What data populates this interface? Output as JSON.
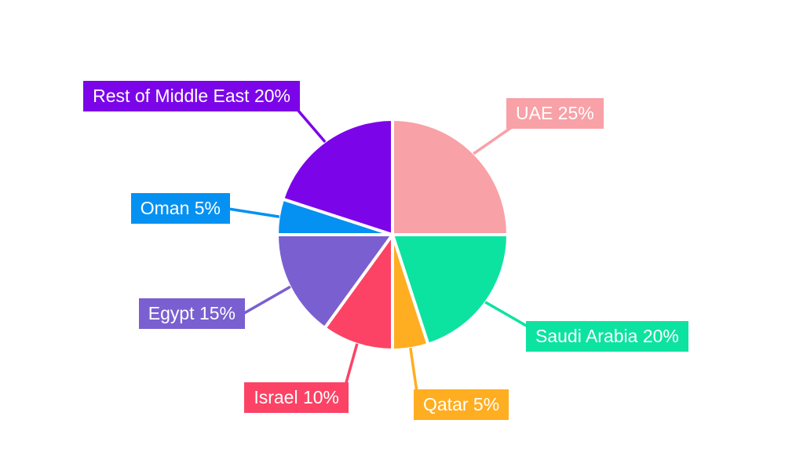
{
  "chart_data": {
    "type": "pie",
    "title": "",
    "labels": [
      "UAE",
      "Saudi Arabia",
      "Qatar",
      "Israel",
      "Egypt",
      "Oman",
      "Rest of Middle East"
    ],
    "values": [
      25,
      20,
      5,
      10,
      15,
      5,
      20
    ],
    "unit": "%",
    "display_labels": [
      "UAE 25%",
      "Saudi Arabia 20%",
      "Qatar 5%",
      "Israel 10%",
      "Egypt 15%",
      "Oman 5%",
      "Rest of Middle East 20%"
    ],
    "colors": [
      "#F8A1A7",
      "#0DE3A0",
      "#FFAD21",
      "#FC4365",
      "#7A5FD0",
      "#0591F2",
      "#7B05E8"
    ],
    "start_angle_deg": 0,
    "direction": "clockwise",
    "slice_border_color": "#FFFFFF",
    "label_text_color": "#FFFFFF",
    "background_color": "#FFFFFF",
    "legend_position": "none",
    "label_style": "outside-colored-boxes-with-leader-lines"
  }
}
